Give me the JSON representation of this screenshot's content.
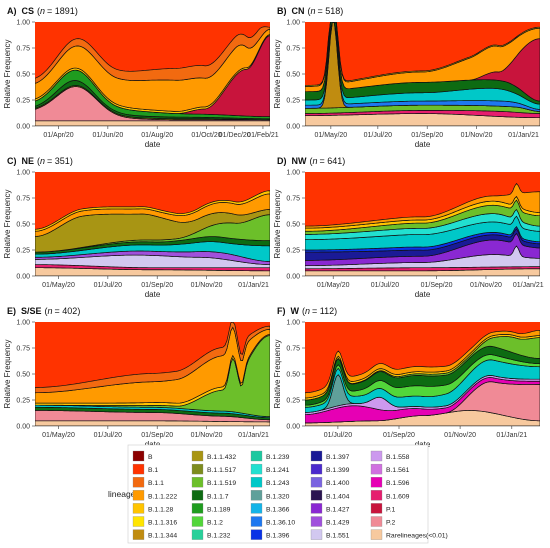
{
  "figure": {
    "ylabel": "Relative Frequency",
    "xlabel": "date",
    "legend_title": "lineage"
  },
  "chart_data": [
    {
      "type": "area",
      "panel_letter": "A)",
      "title_text": "CS",
      "n_label": "n",
      "n_value": "= 1891",
      "xticks": [
        "01/Apr/20",
        "01/Jun/20",
        "01/Aug/20",
        "01/Oct/20",
        "01/Dec/20",
        "01/Feb/21"
      ],
      "yticks": [
        "0.00",
        "0.25",
        "0.50",
        "0.75",
        "1.00"
      ],
      "ylim": [
        0,
        1
      ]
    },
    {
      "type": "area",
      "panel_letter": "B)",
      "title_text": "CN",
      "n_label": "n",
      "n_value": "= 518",
      "xticks": [
        "01/May/20",
        "01/Jul/20",
        "01/Sep/20",
        "01/Nov/20",
        "01/Jan/21"
      ],
      "yticks": [
        "0.00",
        "0.25",
        "0.50",
        "0.75",
        "1.00"
      ],
      "ylim": [
        0,
        1
      ]
    },
    {
      "type": "area",
      "panel_letter": "C)",
      "title_text": "NE",
      "n_label": "n",
      "n_value": "= 351",
      "xticks": [
        "01/May/20",
        "01/Jul/20",
        "01/Sep/20",
        "01/Nov/20",
        "01/Jan/21"
      ],
      "yticks": [
        "0.00",
        "0.25",
        "0.50",
        "0.75",
        "1.00"
      ],
      "ylim": [
        0,
        1
      ]
    },
    {
      "type": "area",
      "panel_letter": "D)",
      "title_text": "NW",
      "n_label": "n",
      "n_value": "= 641",
      "xticks": [
        "01/May/20",
        "01/Jul/20",
        "01/Sep/20",
        "01/Nov/20",
        "01/Jan/21"
      ],
      "yticks": [
        "0.00",
        "0.25",
        "0.50",
        "0.75",
        "1.00"
      ],
      "ylim": [
        0,
        1
      ]
    },
    {
      "type": "area",
      "panel_letter": "E)",
      "title_text": "S/SE",
      "n_label": "n",
      "n_value": "= 402",
      "xticks": [
        "01/May/20",
        "01/Jul/20",
        "01/Sep/20",
        "01/Nov/20",
        "01/Jan/21"
      ],
      "yticks": [
        "0.00",
        "0.25",
        "0.50",
        "0.75",
        "1.00"
      ],
      "ylim": [
        0,
        1
      ]
    },
    {
      "type": "area",
      "panel_letter": "F)",
      "title_text": "W",
      "n_label": "n",
      "n_value": "= 112",
      "xticks": [
        "01/Jul/20",
        "01/Sep/20",
        "01/Nov/20",
        "01/Jan/21"
      ],
      "yticks": [
        "0.00",
        "0.25",
        "0.50",
        "0.75",
        "1.00"
      ],
      "ylim": [
        0,
        1
      ]
    }
  ],
  "legend": {
    "columns": [
      [
        {
          "label": "B",
          "color": "#8b0000"
        },
        {
          "label": "B.1",
          "color": "#ff3300"
        },
        {
          "label": "B.1.1",
          "color": "#f26a10"
        },
        {
          "label": "B.1.1.222",
          "color": "#ff9a00"
        },
        {
          "label": "B.1.1.28",
          "color": "#ffc400"
        },
        {
          "label": "B.1.1.316",
          "color": "#ffe500"
        },
        {
          "label": "B.1.1.344",
          "color": "#c08c10"
        }
      ],
      [
        {
          "label": "B.1.1.432",
          "color": "#a89514"
        },
        {
          "label": "B.1.1.517",
          "color": "#7d8c1e"
        },
        {
          "label": "B.1.1.519",
          "color": "#6cbf2a"
        },
        {
          "label": "B.1.1.7",
          "color": "#0d6b12"
        },
        {
          "label": "B.1.189",
          "color": "#1f9c1f"
        },
        {
          "label": "B.1.2",
          "color": "#52d63a"
        },
        {
          "label": "B.1.232",
          "color": "#28d09a"
        }
      ],
      [
        {
          "label": "B.1.239",
          "color": "#1ec8a0"
        },
        {
          "label": "B.1.241",
          "color": "#22e0d0"
        },
        {
          "label": "B.1.243",
          "color": "#00c8c8"
        },
        {
          "label": "B.1.320",
          "color": "#5fa09a"
        },
        {
          "label": "B.1.366",
          "color": "#14b4e8"
        },
        {
          "label": "B.1.36.10",
          "color": "#1e78f0"
        },
        {
          "label": "B.1.396",
          "color": "#0a32e6"
        }
      ],
      [
        {
          "label": "B.1.397",
          "color": "#1a1a96"
        },
        {
          "label": "B.1.399",
          "color": "#4b2acd"
        },
        {
          "label": "B.1.400",
          "color": "#7a64e0"
        },
        {
          "label": "B.1.404",
          "color": "#2a1450"
        },
        {
          "label": "B.1.427",
          "color": "#8a28d2"
        },
        {
          "label": "B.1.429",
          "color": "#a050dc"
        },
        {
          "label": "B.1.551",
          "color": "#d2c8f0"
        }
      ],
      [
        {
          "label": "B.1.558",
          "color": "#cc99ee"
        },
        {
          "label": "B.1.561",
          "color": "#d070e0"
        },
        {
          "label": "B.1.596",
          "color": "#e600b4"
        },
        {
          "label": "B.1.609",
          "color": "#e61e6e"
        },
        {
          "label": "P.1",
          "color": "#c8143c"
        },
        {
          "label": "P.2",
          "color": "#f08a96"
        },
        {
          "label": "Rarelineages(<0.01)",
          "color": "#f7c99e"
        }
      ]
    ]
  }
}
